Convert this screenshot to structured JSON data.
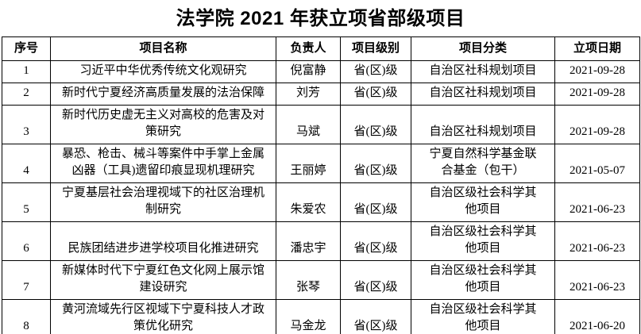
{
  "title": "法学院 2021 年获立项省部级项目",
  "colors": {
    "text": "#000000",
    "border": "#000000",
    "background": "#ffffff"
  },
  "table": {
    "headers": {
      "no": "序号",
      "name": "项目名称",
      "leader": "负责人",
      "level": "项目级别",
      "category": "项目分类",
      "date": "立项日期"
    },
    "rows": [
      {
        "no": "1",
        "name": "习近平中华优秀传统文化观研究",
        "leader": "倪富静",
        "level": "省(区)级",
        "category": "自治区社科规划项目",
        "date": "2021-09-28"
      },
      {
        "no": "2",
        "name": "新时代宁夏经济高质量发展的法治保障",
        "leader": "刘芳",
        "level": "省(区)级",
        "category": "自治区社科规划项目",
        "date": "2021-09-28"
      },
      {
        "no": "3",
        "name": "新时代历史虚无主义对高校的危害及对\n策研究",
        "leader": "马斌",
        "level": "省(区)级",
        "category": "自治区社科规划项目",
        "date": "2021-09-28"
      },
      {
        "no": "4",
        "name": "暴恐、枪击、械斗等案件中手掌上金属\n凶器（工具)遗留印痕显现机理研究",
        "leader": "王丽婷",
        "level": "省(区)级",
        "category": "宁夏自然科学基金联\n合基金（包干）",
        "date": "2021-05-07"
      },
      {
        "no": "5",
        "name": "宁夏基层社会治理视域下的社区治理机\n制研究",
        "leader": "朱爱农",
        "level": "省(区)级",
        "category": "自治区级社会科学其\n他项目",
        "date": "2021-06-23"
      },
      {
        "no": "6",
        "name": "民族团结进步进学校项目化推进研究",
        "leader": "潘忠宇",
        "level": "省(区)级",
        "category": "自治区级社会科学其\n他项目",
        "date": "2021-06-23"
      },
      {
        "no": "7",
        "name": "新媒体时代下宁夏红色文化网上展示馆\n建设研究",
        "leader": "张琴",
        "level": "省(区)级",
        "category": "自治区级社会科学其\n他项目",
        "date": "2021-06-23"
      },
      {
        "no": "8",
        "name": "黄河流域先行区视域下宁夏科技人才政\n策优化研究",
        "leader": "马金龙",
        "level": "省(区)级",
        "category": "自治区级社会科学其\n他项目",
        "date": "2021-06-20"
      }
    ]
  }
}
